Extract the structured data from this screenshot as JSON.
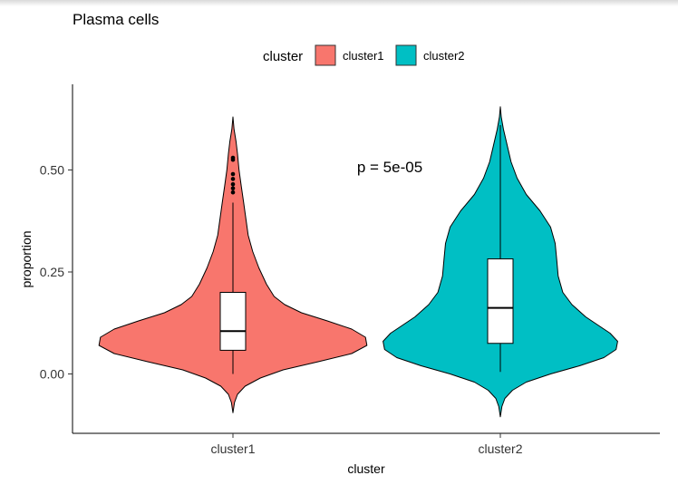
{
  "chart_data": {
    "type": "violin",
    "title": "Plasma cells",
    "xlabel": "cluster",
    "ylabel": "proportion",
    "categories": [
      "cluster1",
      "cluster2"
    ],
    "ylim": [
      -0.15,
      0.66
    ],
    "yticks": [
      0.0,
      0.25,
      0.5
    ],
    "ytick_labels": [
      "0.00",
      "0.25",
      "0.50"
    ],
    "grid": false,
    "legend": {
      "title": "cluster",
      "position": "top",
      "entries": [
        {
          "label": "cluster1",
          "color": "#F8766D"
        },
        {
          "label": "cluster2",
          "color": "#00BFC4"
        }
      ]
    },
    "annotation": {
      "text": "p = 5e-05",
      "x": 1.5,
      "y": 0.51
    },
    "series": [
      {
        "name": "cluster1",
        "color": "#F8766D",
        "violin_profile": [
          [
            -0.095,
            0.0
          ],
          [
            -0.07,
            0.01
          ],
          [
            -0.05,
            0.03
          ],
          [
            -0.03,
            0.08
          ],
          [
            -0.01,
            0.18
          ],
          [
            0.01,
            0.33
          ],
          [
            0.03,
            0.56
          ],
          [
            0.05,
            0.78
          ],
          [
            0.07,
            0.88
          ],
          [
            0.09,
            0.87
          ],
          [
            0.11,
            0.78
          ],
          [
            0.13,
            0.62
          ],
          [
            0.15,
            0.45
          ],
          [
            0.17,
            0.34
          ],
          [
            0.19,
            0.27
          ],
          [
            0.22,
            0.22
          ],
          [
            0.26,
            0.17
          ],
          [
            0.3,
            0.13
          ],
          [
            0.34,
            0.1
          ],
          [
            0.38,
            0.085
          ],
          [
            0.42,
            0.07
          ],
          [
            0.46,
            0.055
          ],
          [
            0.5,
            0.04
          ],
          [
            0.54,
            0.03
          ],
          [
            0.57,
            0.02
          ],
          [
            0.6,
            0.007
          ],
          [
            0.63,
            0.0
          ]
        ],
        "box": {
          "q1": 0.058,
          "median": 0.105,
          "q3": 0.2,
          "whisker_low": 0.0,
          "whisker_high": 0.42
        },
        "outliers": [
          0.445,
          0.455,
          0.465,
          0.478,
          0.49,
          0.525,
          0.53
        ]
      },
      {
        "name": "cluster2",
        "color": "#00BFC4",
        "violin_profile": [
          [
            -0.105,
            0.0
          ],
          [
            -0.08,
            0.01
          ],
          [
            -0.06,
            0.03
          ],
          [
            -0.04,
            0.08
          ],
          [
            -0.02,
            0.17
          ],
          [
            0.0,
            0.33
          ],
          [
            0.02,
            0.52
          ],
          [
            0.04,
            0.68
          ],
          [
            0.06,
            0.76
          ],
          [
            0.08,
            0.77
          ],
          [
            0.1,
            0.72
          ],
          [
            0.12,
            0.64
          ],
          [
            0.14,
            0.56
          ],
          [
            0.17,
            0.47
          ],
          [
            0.2,
            0.41
          ],
          [
            0.24,
            0.38
          ],
          [
            0.28,
            0.37
          ],
          [
            0.32,
            0.36
          ],
          [
            0.36,
            0.33
          ],
          [
            0.4,
            0.26
          ],
          [
            0.44,
            0.17
          ],
          [
            0.48,
            0.11
          ],
          [
            0.52,
            0.07
          ],
          [
            0.56,
            0.045
          ],
          [
            0.6,
            0.02
          ],
          [
            0.63,
            0.006
          ],
          [
            0.655,
            0.0
          ]
        ],
        "box": {
          "q1": 0.075,
          "median": 0.162,
          "q3": 0.282,
          "whisker_low": 0.005,
          "whisker_high": 0.61
        },
        "outliers": []
      }
    ]
  }
}
